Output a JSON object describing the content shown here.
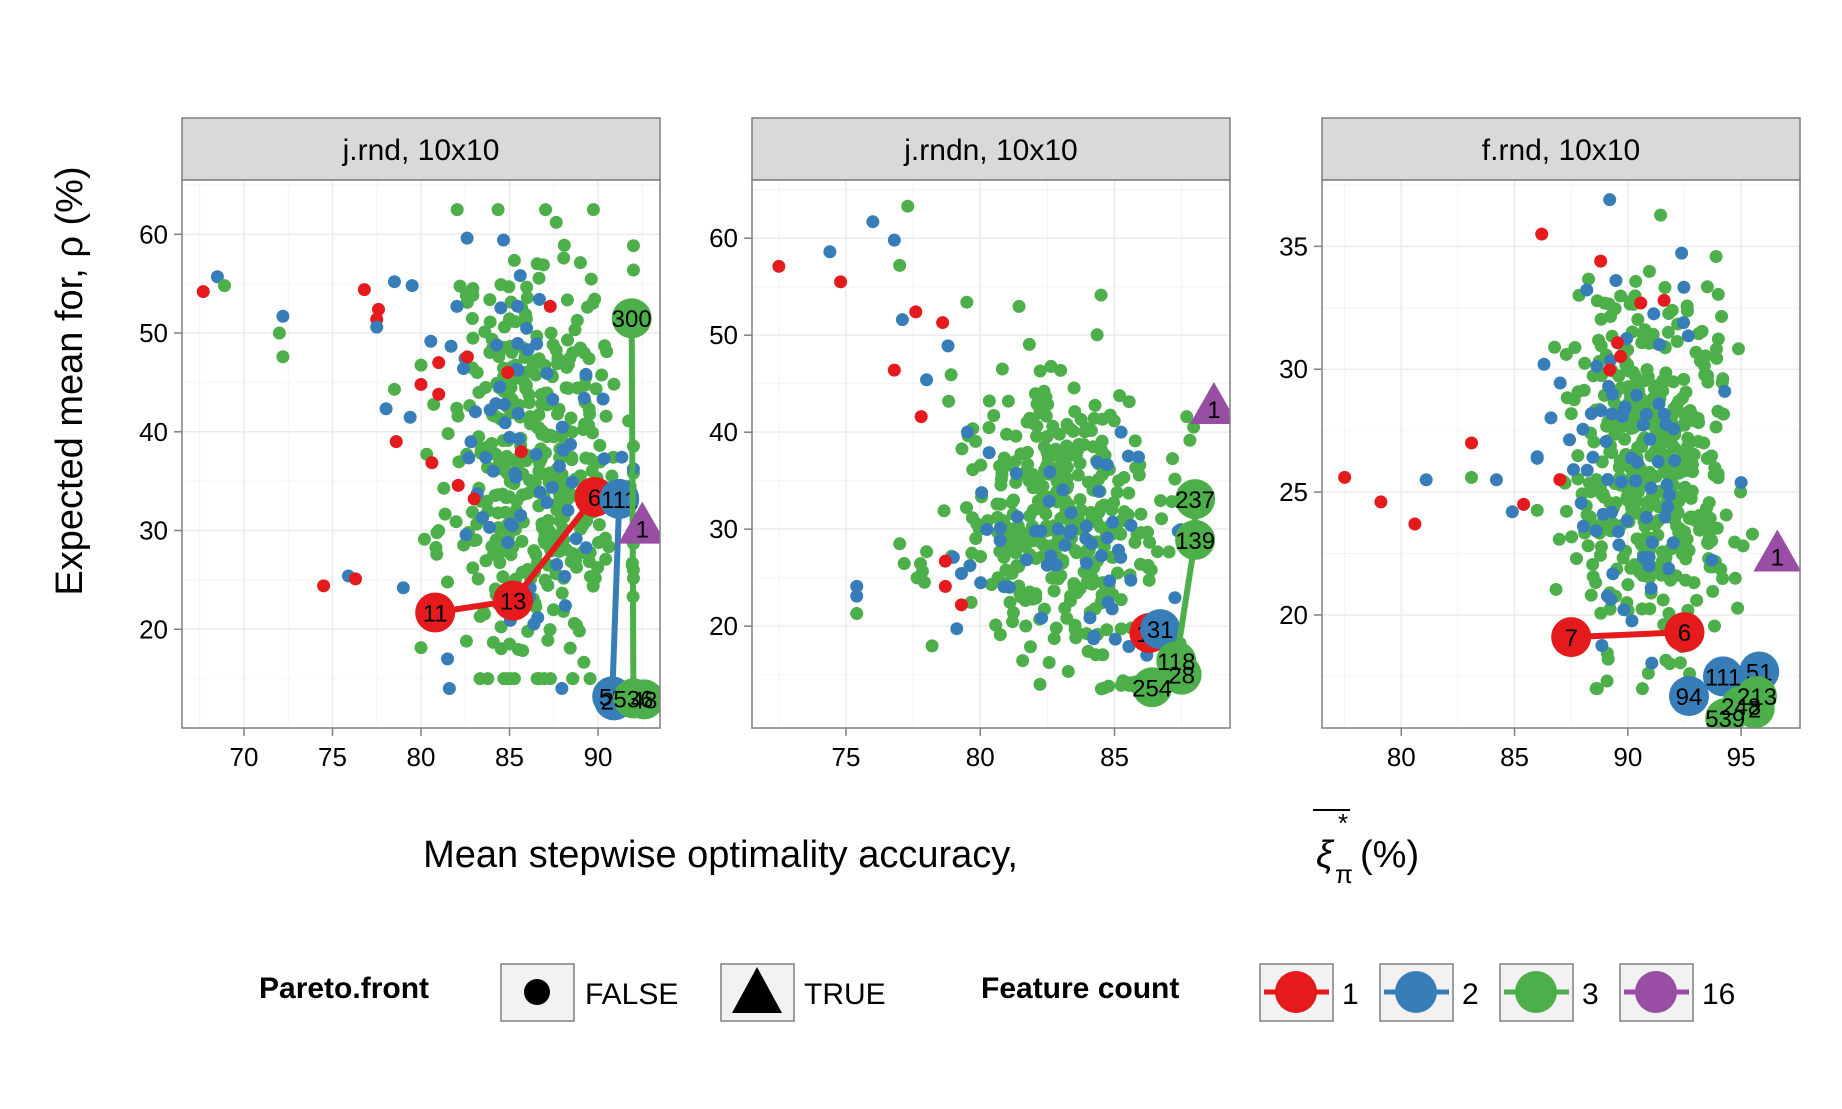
{
  "chart_data": {
    "type": "scatter",
    "ylabel": "Expected mean for, ρ (%)",
    "xlabel": "Mean stepwise optimality accuracy,",
    "xlabel_symbol": "ξ",
    "xlabel_sub": "π",
    "xlabel_sup": "*",
    "xlabel_unit": "(%)",
    "colors": {
      "1": "#E41A1C",
      "2": "#377EB8",
      "3": "#4DAF4A",
      "16": "#984EA3"
    },
    "legend": {
      "pareto_title": "Pareto.front",
      "pareto_items": [
        "FALSE",
        "TRUE"
      ],
      "feature_title": "Feature count",
      "feature_items": [
        "1",
        "2",
        "3",
        "16"
      ]
    },
    "panels": [
      {
        "strip": "j.rnd, 10x10",
        "xlim": [
          66.5,
          93.5
        ],
        "ylim": [
          10,
          65.5
        ],
        "xticks": [
          70,
          75,
          80,
          85,
          90
        ],
        "yticks": [
          20,
          30,
          40,
          50,
          60
        ],
        "clouds": [
          {
            "fc": "3",
            "cx": 86.5,
            "cy": 37,
            "sx": 2.5,
            "sy": 11,
            "n": 420,
            "seed": 11,
            "xr": [
              80,
              92
            ],
            "yr": [
              15,
              62.5
            ]
          },
          {
            "fc": "2",
            "cx": 86,
            "cy": 38,
            "sx": 3,
            "sy": 11,
            "n": 75,
            "seed": 12,
            "xr": [
              77,
              92
            ],
            "yr": [
              14,
              60
            ]
          },
          {
            "fc": "1",
            "cx": 86,
            "cy": 40,
            "sx": 4,
            "sy": 10,
            "n": 5,
            "seed": 13,
            "xr": [
              80,
              91
            ],
            "yr": [
              20,
              55
            ]
          }
        ],
        "scatter": [
          {
            "fc": "1",
            "x": 67.7,
            "y": 54.2
          },
          {
            "fc": "2",
            "x": 68.5,
            "y": 55.7
          },
          {
            "fc": "3",
            "x": 68.9,
            "y": 54.8
          },
          {
            "fc": "2",
            "x": 72.2,
            "y": 51.7
          },
          {
            "fc": "3",
            "x": 72,
            "y": 50
          },
          {
            "fc": "3",
            "x": 72.2,
            "y": 47.6
          },
          {
            "fc": "1",
            "x": 74.5,
            "y": 24.4
          },
          {
            "fc": "2",
            "x": 75.9,
            "y": 25.4
          },
          {
            "fc": "1",
            "x": 76.3,
            "y": 25.1
          },
          {
            "fc": "1",
            "x": 76.8,
            "y": 54.4
          },
          {
            "fc": "1",
            "x": 77.6,
            "y": 52.4
          },
          {
            "fc": "1",
            "x": 77.5,
            "y": 51.4
          },
          {
            "fc": "2",
            "x": 77.5,
            "y": 50.6
          },
          {
            "fc": "2",
            "x": 78.5,
            "y": 55.2
          },
          {
            "fc": "2",
            "x": 79.5,
            "y": 54.8
          },
          {
            "fc": "3",
            "x": 78.5,
            "y": 44.3
          },
          {
            "fc": "1",
            "x": 78.6,
            "y": 39
          },
          {
            "fc": "2",
            "x": 79,
            "y": 24.2
          },
          {
            "fc": "1",
            "x": 81,
            "y": 47
          },
          {
            "fc": "1",
            "x": 81,
            "y": 43.8
          },
          {
            "fc": "1",
            "x": 83,
            "y": 33.2
          },
          {
            "fc": "2",
            "x": 81.5,
            "y": 17
          },
          {
            "fc": "1",
            "x": 84.9,
            "y": 46
          },
          {
            "fc": "1",
            "x": 87.3,
            "y": 52.7
          }
        ],
        "fronts": [
          {
            "fc": "1",
            "pts": [
              [
                80.8,
                21.7,
                "11"
              ],
              [
                85.2,
                22.9,
                "13"
              ],
              [
                89.8,
                33.4,
                "6"
              ]
            ]
          },
          {
            "fc": "2",
            "pts": [
              [
                91.2,
                33.2,
                "111"
              ],
              [
                90.8,
                13.2,
                "59"
              ],
              [
                90.9,
                12.8,
                "24"
              ]
            ]
          },
          {
            "fc": "3",
            "pts": [
              [
                91.9,
                51.5,
                "300"
              ],
              [
                92,
                13,
                "536"
              ],
              [
                92.6,
                12.9,
                "48"
              ]
            ]
          }
        ],
        "triangles": [
          {
            "fc": "16",
            "x": 92.5,
            "y": 30.5,
            "label": "1"
          }
        ]
      },
      {
        "strip": "j.rndn, 10x10",
        "xlim": [
          71.5,
          89.3
        ],
        "ylim": [
          9.5,
          66
        ],
        "xticks": [
          75,
          80,
          85
        ],
        "yticks": [
          20,
          30,
          40,
          50,
          60
        ],
        "clouds": [
          {
            "fc": "3",
            "cx": 83,
            "cy": 31,
            "sx": 2,
            "sy": 7,
            "n": 380,
            "seed": 21,
            "xr": [
              77,
              88
            ],
            "yr": [
              14,
              55
            ]
          },
          {
            "fc": "2",
            "cx": 83,
            "cy": 29,
            "sx": 2,
            "sy": 5.5,
            "n": 60,
            "seed": 22,
            "xr": [
              79,
              87.5
            ],
            "yr": [
              17,
              40
            ]
          },
          {
            "fc": "3",
            "cx": 85.8,
            "cy": 14,
            "sx": 0.8,
            "sy": 0.3,
            "n": 35,
            "seed": 24,
            "xr": [
              83.4,
              87
            ],
            "yr": [
              13.4,
              14.6
            ]
          }
        ],
        "scatter": [
          {
            "fc": "1",
            "x": 72.5,
            "y": 57.1
          },
          {
            "fc": "2",
            "x": 74.4,
            "y": 58.6
          },
          {
            "fc": "1",
            "x": 74.8,
            "y": 55.5
          },
          {
            "fc": "2",
            "x": 76,
            "y": 61.7
          },
          {
            "fc": "2",
            "x": 76.8,
            "y": 59.8
          },
          {
            "fc": "3",
            "x": 77.3,
            "y": 63.3
          },
          {
            "fc": "3",
            "x": 77,
            "y": 57.2
          },
          {
            "fc": "2",
            "x": 77.1,
            "y": 51.6
          },
          {
            "fc": "1",
            "x": 77.6,
            "y": 52.4
          },
          {
            "fc": "1",
            "x": 78.6,
            "y": 51.3
          },
          {
            "fc": "1",
            "x": 76.8,
            "y": 46.4
          },
          {
            "fc": "1",
            "x": 77.8,
            "y": 41.6
          },
          {
            "fc": "2",
            "x": 78,
            "y": 45.4
          },
          {
            "fc": "2",
            "x": 78.8,
            "y": 48.9
          },
          {
            "fc": "3",
            "x": 79.5,
            "y": 53.4
          },
          {
            "fc": "2",
            "x": 75.4,
            "y": 24.1
          },
          {
            "fc": "2",
            "x": 75.4,
            "y": 23.1
          },
          {
            "fc": "3",
            "x": 75.4,
            "y": 21.3
          },
          {
            "fc": "1",
            "x": 78.7,
            "y": 26.7
          },
          {
            "fc": "1",
            "x": 78.7,
            "y": 24.1
          },
          {
            "fc": "1",
            "x": 79.3,
            "y": 22.2
          }
        ],
        "fronts": [
          {
            "fc": "1",
            "pts": [
              [
                86.3,
                19.3,
                "13"
              ]
            ]
          },
          {
            "fc": "2",
            "pts": [
              [
                86.7,
                19.7,
                "31"
              ]
            ]
          },
          {
            "fc": "3",
            "pts": [
              [
                88,
                33.1,
                "237"
              ],
              [
                88,
                28.9,
                "139"
              ],
              [
                87.3,
                16.4,
                "118"
              ],
              [
                87.5,
                15,
                "28"
              ],
              [
                86.4,
                13.7,
                "254"
              ]
            ]
          }
        ],
        "triangles": [
          {
            "fc": "16",
            "x": 88.7,
            "y": 42.7,
            "label": "1"
          }
        ]
      },
      {
        "strip": "f.rnd, 10x10",
        "xlim": [
          76.5,
          97.6
        ],
        "ylim": [
          15.4,
          37.7
        ],
        "xticks": [
          80,
          85,
          90,
          95
        ],
        "yticks": [
          20,
          25,
          30,
          35
        ],
        "clouds": [
          {
            "fc": "3",
            "cx": 91,
            "cy": 26,
            "sx": 1.8,
            "sy": 3.5,
            "n": 460,
            "seed": 31,
            "xr": [
              86,
              95.5
            ],
            "yr": [
              17,
              36.5
            ]
          },
          {
            "fc": "2",
            "cx": 90,
            "cy": 26.5,
            "sx": 2.3,
            "sy": 3.5,
            "n": 75,
            "seed": 32,
            "xr": [
              86,
              95
            ],
            "yr": [
              17.5,
              37
            ]
          },
          {
            "fc": "1",
            "cx": 90,
            "cy": 27,
            "sx": 2,
            "sy": 4,
            "n": 5,
            "seed": 33,
            "xr": [
              87,
              93
            ],
            "yr": [
              22,
              34
            ]
          }
        ],
        "scatter": [
          {
            "fc": "1",
            "x": 77.5,
            "y": 25.6
          },
          {
            "fc": "1",
            "x": 79.1,
            "y": 24.6
          },
          {
            "fc": "1",
            "x": 80.6,
            "y": 23.7
          },
          {
            "fc": "2",
            "x": 81.1,
            "y": 25.5
          },
          {
            "fc": "3",
            "x": 83.1,
            "y": 25.6
          },
          {
            "fc": "1",
            "x": 83.1,
            "y": 27
          },
          {
            "fc": "2",
            "x": 84.2,
            "y": 25.5
          },
          {
            "fc": "2",
            "x": 84.9,
            "y": 24.2
          },
          {
            "fc": "1",
            "x": 85.4,
            "y": 24.5
          },
          {
            "fc": "1",
            "x": 86.2,
            "y": 35.5
          },
          {
            "fc": "2",
            "x": 86.3,
            "y": 30.2
          },
          {
            "fc": "1",
            "x": 88.8,
            "y": 34.4
          },
          {
            "fc": "1",
            "x": 91.6,
            "y": 32.8
          },
          {
            "fc": "2",
            "x": 89.2,
            "y": 36.9
          },
          {
            "fc": "2",
            "x": 91.4,
            "y": 31
          }
        ],
        "fronts": [
          {
            "fc": "1",
            "pts": [
              [
                87.5,
                19.1,
                "7"
              ],
              [
                92.5,
                19.3,
                "6"
              ]
            ]
          },
          {
            "fc": "2",
            "pts": [
              [
                95.8,
                17.7,
                "51"
              ],
              [
                94.2,
                17.5,
                "111"
              ],
              [
                92.7,
                16.7,
                "94"
              ]
            ]
          },
          {
            "fc": "3",
            "pts": [
              [
                95.7,
                16.7,
                "213"
              ],
              [
                95,
                16.3,
                "248"
              ],
              [
                95.6,
                16.2,
                "2"
              ],
              [
                94.3,
                15.8,
                "539"
              ]
            ]
          }
        ],
        "triangles": [
          {
            "fc": "16",
            "x": 96.6,
            "y": 22.5,
            "label": "1"
          }
        ]
      }
    ]
  }
}
